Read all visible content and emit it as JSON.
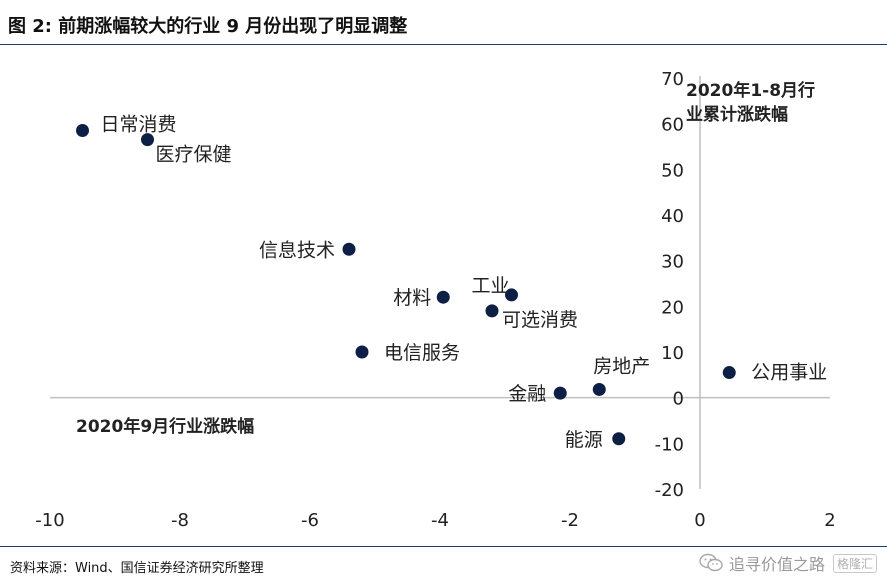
{
  "header": {
    "title": "图 2: 前期涨幅较大的行业 9 月份出现了明显调整"
  },
  "footer": {
    "source": "资料来源：Wind、国信证券经济研究所整理",
    "watermark_text": "追寻价值之路",
    "watermark_brand": "格隆汇",
    "watermark_icon": "wechat-icon"
  },
  "colors": {
    "marker": "#0d1f45",
    "axis": "#bfbfbf",
    "text": "#222222",
    "rule": "#1f3a66"
  },
  "chart_data": {
    "type": "scatter",
    "xlabel": "2020年9月行业涨跌幅",
    "ylabel": "2020年1-8月行业累计涨跌幅",
    "xlim": [
      -10,
      2
    ],
    "ylim": [
      -20,
      70
    ],
    "x_ticks": [
      -10,
      -8,
      -6,
      -4,
      -2,
      0,
      2
    ],
    "y_ticks": [
      -20,
      -10,
      0,
      10,
      20,
      30,
      40,
      50,
      60,
      70
    ],
    "grid": false,
    "points": [
      {
        "label": "日常消费",
        "x": -9.5,
        "y": 58.5
      },
      {
        "label": "医疗保健",
        "x": -8.5,
        "y": 56.5
      },
      {
        "label": "信息技术",
        "x": -5.4,
        "y": 32.5
      },
      {
        "label": "材料",
        "x": -3.95,
        "y": 22
      },
      {
        "label": "工业",
        "x": -2.9,
        "y": 22.5
      },
      {
        "label": "可选消费",
        "x": -3.2,
        "y": 19
      },
      {
        "label": "电信服务",
        "x": -5.2,
        "y": 10
      },
      {
        "label": "房地产",
        "x": -1.55,
        "y": 1.8
      },
      {
        "label": "金融",
        "x": -2.15,
        "y": 1
      },
      {
        "label": "公用事业",
        "x": 0.45,
        "y": 5.5
      },
      {
        "label": "能源",
        "x": -1.25,
        "y": -9
      }
    ]
  }
}
